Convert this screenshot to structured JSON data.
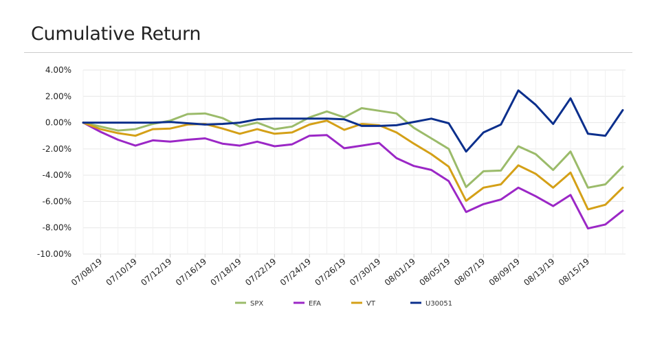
{
  "chart_data": {
    "type": "line",
    "title": "Cumulative Return",
    "xlabel": "",
    "ylabel": "",
    "ylim": [
      -10,
      4
    ],
    "yticks": [
      4,
      2,
      0,
      -2,
      -4,
      -6,
      -8,
      -10
    ],
    "ytick_labels": [
      "4.00%",
      "2.00%",
      "0.00%",
      "-2.00%",
      "-4.00%",
      "-6.00%",
      "-8.00%",
      "-10.00%"
    ],
    "x": [
      "07/05/19",
      "07/08/19",
      "07/09/19",
      "07/10/19",
      "07/11/19",
      "07/12/19",
      "07/15/19",
      "07/16/19",
      "07/17/19",
      "07/18/19",
      "07/19/19",
      "07/22/19",
      "07/23/19",
      "07/24/19",
      "07/25/19",
      "07/26/19",
      "07/29/19",
      "07/30/19",
      "07/31/19",
      "08/01/19",
      "08/02/19",
      "08/05/19",
      "08/06/19",
      "08/07/19",
      "08/08/19",
      "08/09/19",
      "08/12/19",
      "08/13/19",
      "08/14/19",
      "08/15/19",
      "08/16/19",
      "08/19/19"
    ],
    "xtick_labels": [
      "07/08/19",
      "07/10/19",
      "07/12/19",
      "07/16/19",
      "07/18/19",
      "07/22/19",
      "07/24/19",
      "07/26/19",
      "07/30/19",
      "08/01/19",
      "08/05/19",
      "08/07/19",
      "08/09/19",
      "08/13/19",
      "08/15/19"
    ],
    "grid": true,
    "legend_position": "bottom",
    "series": [
      {
        "name": "SPX",
        "color": "#9bbb6a",
        "values": [
          0,
          -0.3,
          -0.6,
          -0.5,
          -0.1,
          0.15,
          0.65,
          0.7,
          0.35,
          -0.3,
          0.0,
          -0.5,
          -0.3,
          0.4,
          0.85,
          0.4,
          1.1,
          0.9,
          0.7,
          -0.4,
          -1.2,
          -2.0,
          -4.9,
          -3.7,
          -3.65,
          -1.8,
          -2.4,
          -3.6,
          -2.2,
          -4.95,
          -4.7,
          -3.35
        ]
      },
      {
        "name": "EFA",
        "color": "#9b27c6",
        "values": [
          0,
          -0.7,
          -1.3,
          -1.75,
          -1.35,
          -1.45,
          -1.3,
          -1.2,
          -1.6,
          -1.75,
          -1.45,
          -1.8,
          -1.65,
          -1.0,
          -0.95,
          -1.95,
          -1.75,
          -1.55,
          -2.7,
          -3.3,
          -3.6,
          -4.45,
          -6.8,
          -6.2,
          -5.85,
          -4.95,
          -5.6,
          -6.35,
          -5.5,
          -8.05,
          -7.75,
          -6.7
        ]
      },
      {
        "name": "VT",
        "color": "#d4a017",
        "values": [
          0,
          -0.5,
          -0.8,
          -1.0,
          -0.5,
          -0.45,
          -0.15,
          -0.1,
          -0.45,
          -0.85,
          -0.5,
          -0.85,
          -0.75,
          -0.15,
          0.15,
          -0.55,
          -0.1,
          -0.2,
          -0.75,
          -1.6,
          -2.4,
          -3.35,
          -5.95,
          -4.95,
          -4.7,
          -3.25,
          -3.9,
          -4.95,
          -3.8,
          -6.6,
          -6.25,
          -4.95
        ]
      },
      {
        "name": "U30051",
        "color": "#0b2f8c",
        "values": [
          0,
          0.0,
          0.0,
          0.0,
          0.0,
          0.05,
          -0.05,
          -0.15,
          -0.1,
          0.0,
          0.25,
          0.3,
          0.3,
          0.3,
          0.3,
          0.25,
          -0.25,
          -0.25,
          -0.2,
          0.05,
          0.3,
          -0.05,
          -2.2,
          -0.75,
          -0.15,
          2.45,
          1.35,
          -0.1,
          1.85,
          -0.85,
          -1.0,
          0.95
        ]
      }
    ]
  }
}
